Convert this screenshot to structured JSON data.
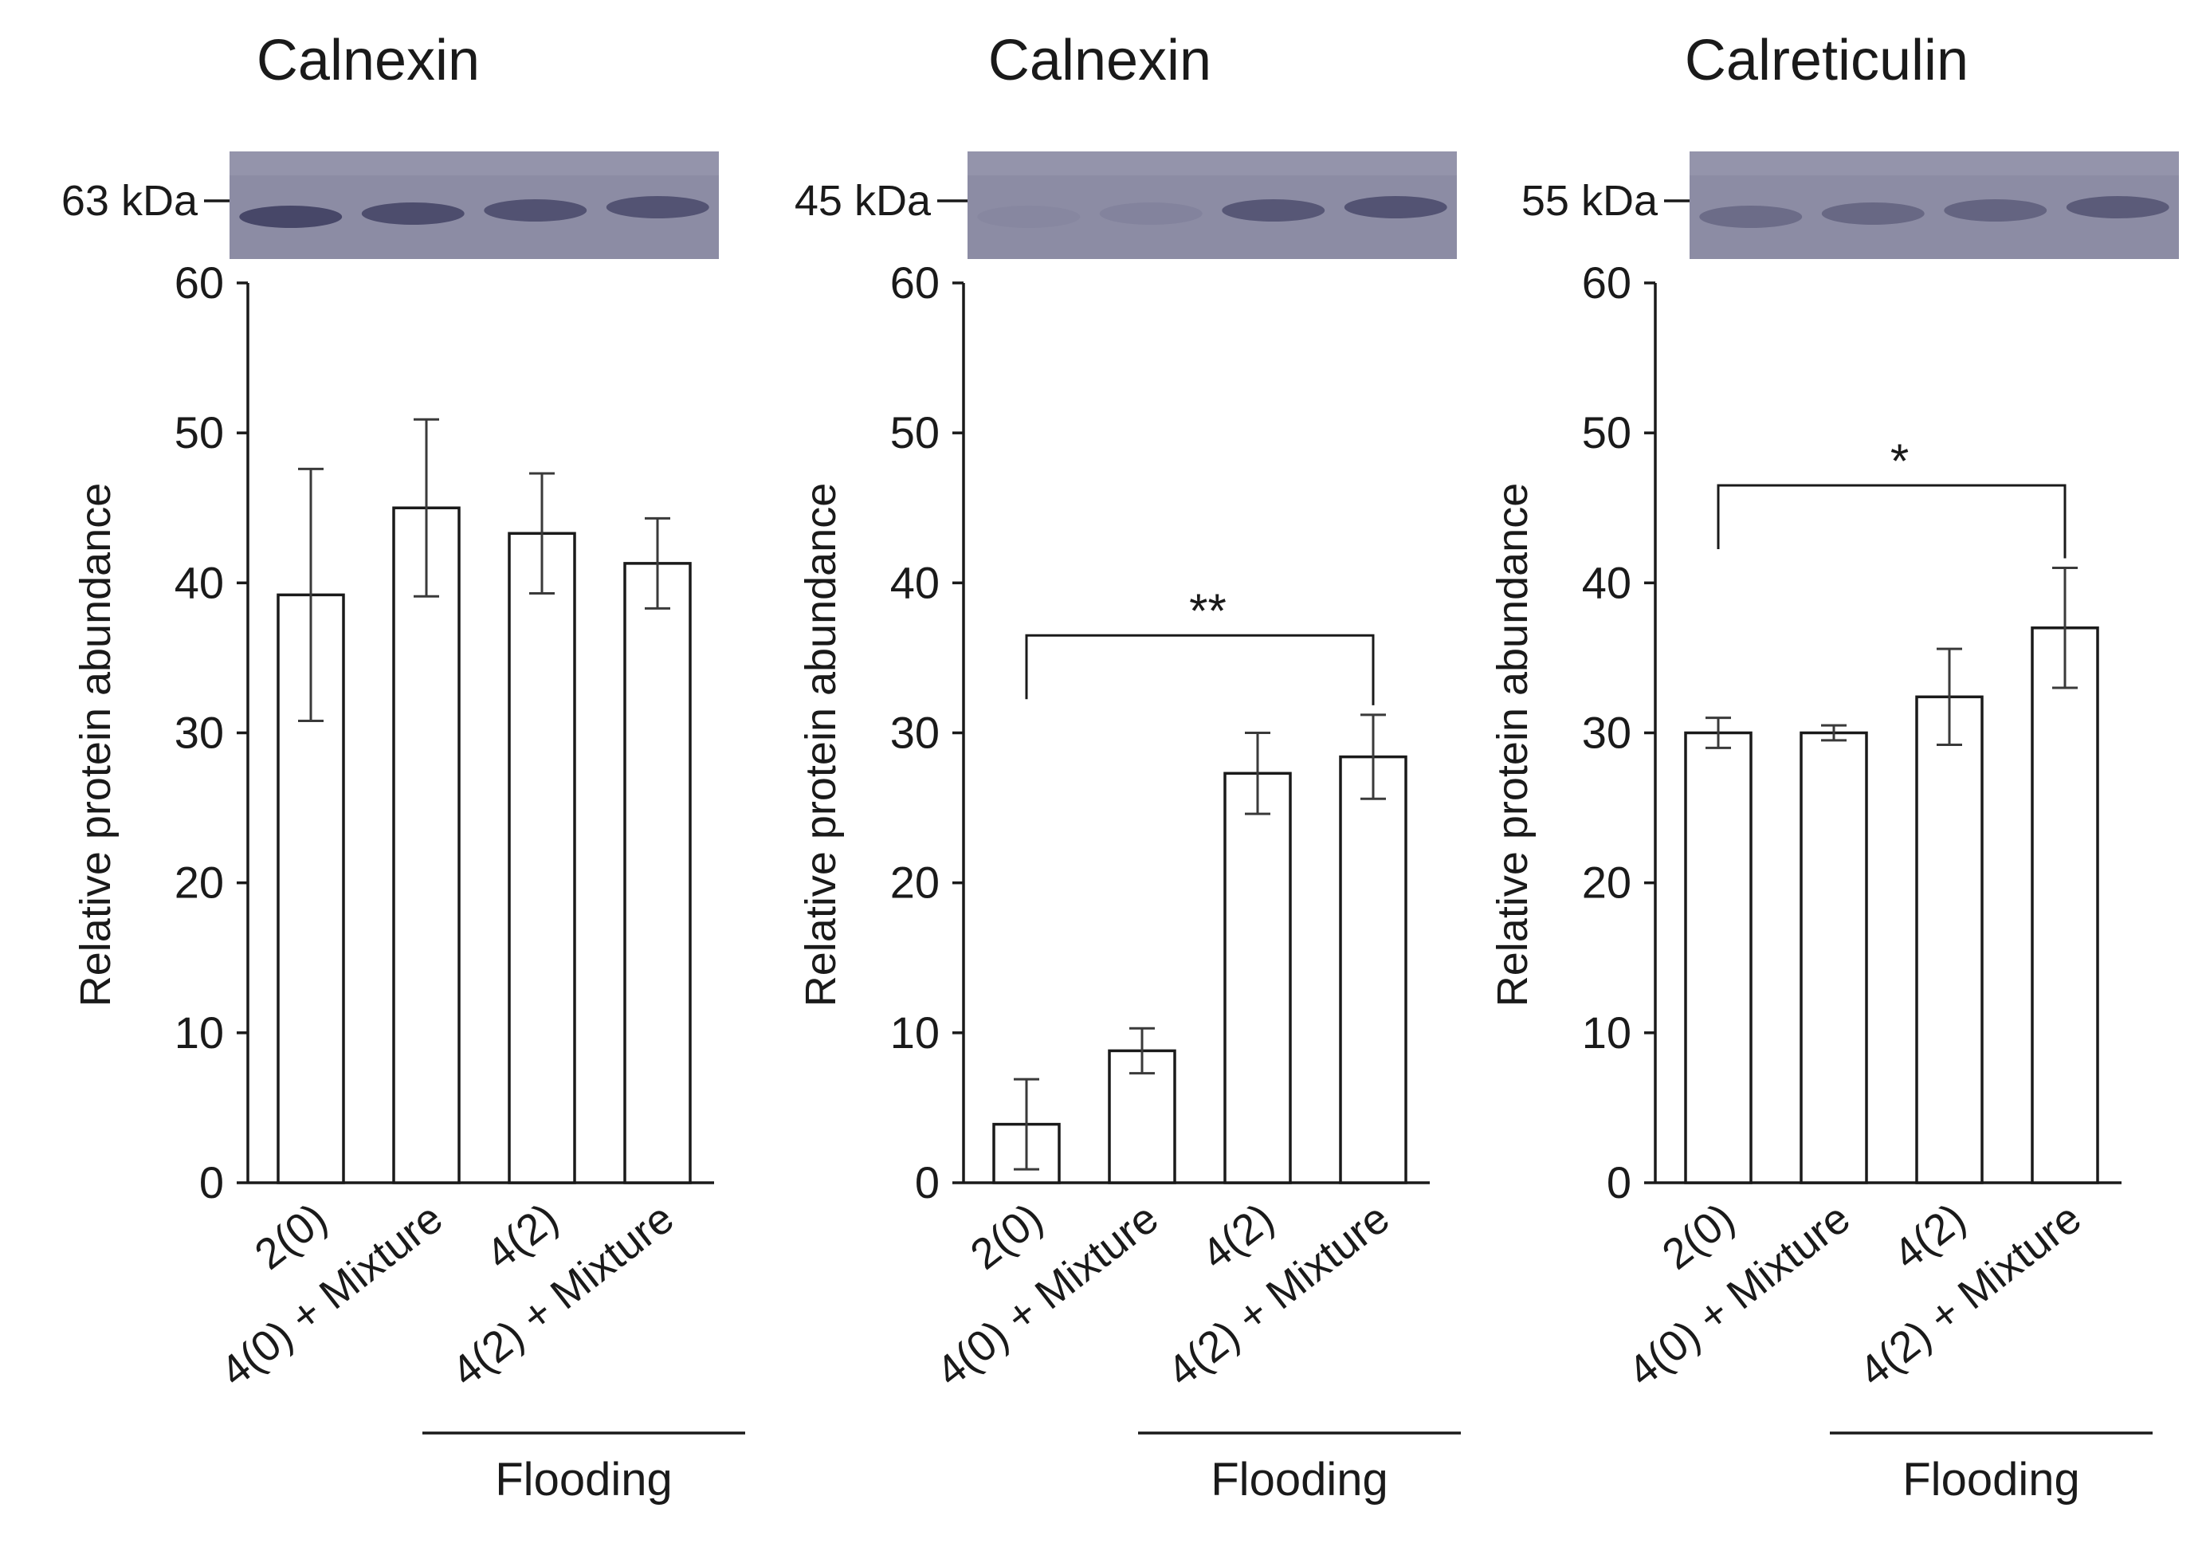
{
  "group_label": "Flooding",
  "chart_data": [
    {
      "type": "bar",
      "title": "Calnexin",
      "marker": "63 kDa",
      "ylabel": "Relative protein abundance",
      "xlabel": "",
      "ylim": [
        0,
        60
      ],
      "yticks": [
        0,
        10,
        20,
        30,
        40,
        50,
        60
      ],
      "categories": [
        "2(0)",
        "4(0) + Mixture",
        "4(2)",
        "4(2) + Mixture"
      ],
      "values": [
        39.2,
        45.0,
        43.3,
        41.3
      ],
      "errors": [
        8.4,
        5.9,
        4.0,
        3.0
      ],
      "band_intensity": [
        0.85,
        0.78,
        0.72,
        0.7
      ],
      "significance": null,
      "group_label": "Flooding"
    },
    {
      "type": "bar",
      "title": "Calnexin",
      "marker": "45 kDa",
      "ylabel": "Relative protein abundance",
      "xlabel": "",
      "ylim": [
        0,
        60
      ],
      "yticks": [
        0,
        10,
        20,
        30,
        40,
        50,
        60
      ],
      "categories": [
        "2(0)",
        "4(0) + Mixture",
        "4(2)",
        "4(2) + Mixture"
      ],
      "values": [
        3.9,
        8.8,
        27.3,
        28.4
      ],
      "errors": [
        3.0,
        1.5,
        2.7,
        2.8
      ],
      "band_intensity": [
        0.05,
        0.1,
        0.65,
        0.7
      ],
      "significance": {
        "label": "**",
        "from": 0,
        "to": 3,
        "y": 36.5
      },
      "group_label": "Flooding"
    },
    {
      "type": "bar",
      "title": "Calreticulin",
      "marker": "55 kDa",
      "ylabel": "Relative protein abundance",
      "xlabel": "",
      "ylim": [
        0,
        60
      ],
      "yticks": [
        0,
        10,
        20,
        30,
        40,
        50,
        60
      ],
      "categories": [
        "2(0)",
        "4(0) + Mixture",
        "4(2)",
        "4(2) + Mixture"
      ],
      "values": [
        30.0,
        30.0,
        32.4,
        37.0
      ],
      "errors": [
        1.0,
        0.5,
        3.2,
        4.0
      ],
      "band_intensity": [
        0.4,
        0.45,
        0.5,
        0.6
      ],
      "significance": {
        "label": "*",
        "from": 0,
        "to": 3,
        "y": 46.5
      },
      "group_label": "Flooding"
    }
  ]
}
